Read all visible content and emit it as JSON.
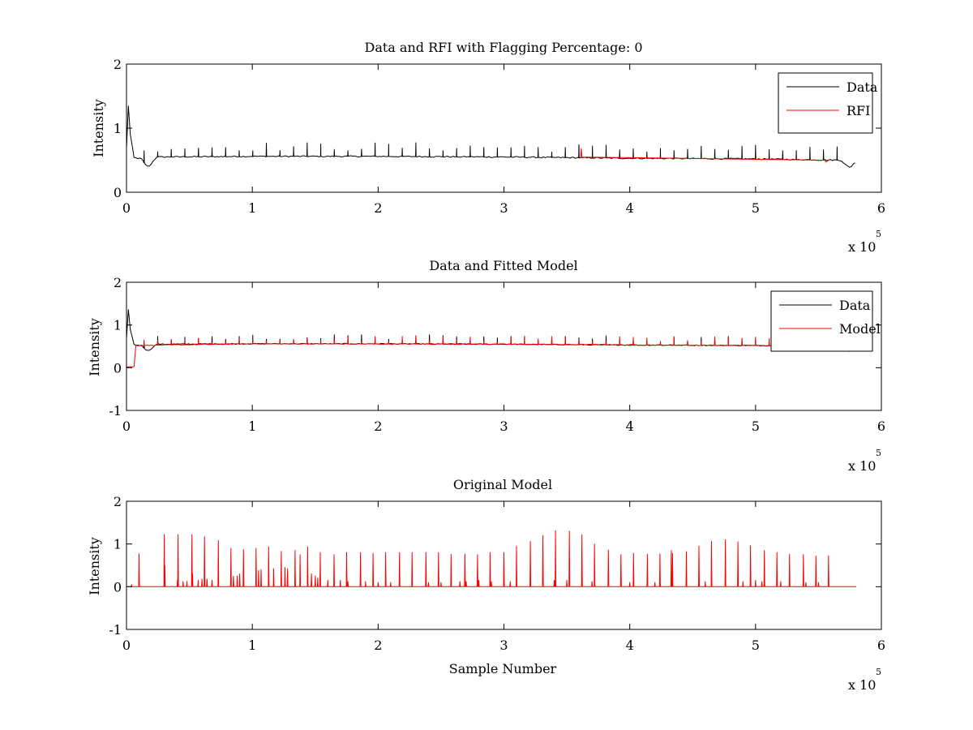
{
  "chart_data": [
    {
      "type": "line",
      "title": "Data and RFI with Flagging Percentage: 0",
      "xlabel": "",
      "ylabel": "Intensity",
      "xlim": [
        0,
        600000
      ],
      "ylim": [
        0,
        2
      ],
      "xticks": [
        "0",
        "1",
        "2",
        "3",
        "4",
        "5",
        "6"
      ],
      "yticks": [
        "0",
        "1",
        "2"
      ],
      "x_multiplier": {
        "base": "x 10",
        "exponent": "5"
      },
      "grid": false,
      "legend": {
        "placement": "top-right",
        "entries": [
          {
            "name": "Data",
            "color": "#000000"
          },
          {
            "name": "RFI",
            "color": "#ff0000"
          }
        ]
      },
      "series": [
        {
          "name": "Data",
          "color": "#000000",
          "baseline": [
            [
              0,
              0.68
            ],
            [
              1000,
              1.5
            ],
            [
              3000,
              0.9
            ],
            [
              6000,
              0.54
            ],
            [
              12000,
              0.52
            ],
            [
              15000,
              0.43
            ],
            [
              18000,
              0.4
            ],
            [
              21000,
              0.48
            ],
            [
              24000,
              0.55
            ],
            [
              100000,
              0.56
            ],
            [
              200000,
              0.56
            ],
            [
              300000,
              0.55
            ],
            [
              400000,
              0.53
            ],
            [
              500000,
              0.52
            ],
            [
              568000,
              0.5
            ],
            [
              572000,
              0.42
            ],
            [
              575000,
              0.38
            ],
            [
              578000,
              0.45
            ],
            [
              580000,
              0.48
            ]
          ],
          "spike_spacing": 10800,
          "spike_start": 14000,
          "spike_end": 568000,
          "spike_height": [
            0.08,
            0.22
          ]
        },
        {
          "name": "RFI",
          "color": "#ff0000",
          "points": [
            [
              361000,
              0.55
            ],
            [
              361500,
              0.68
            ],
            [
              362000,
              0.55
            ],
            [
              555000,
              0.5
            ],
            [
              556000,
              0.47
            ],
            [
              558000,
              0.5
            ]
          ]
        }
      ]
    },
    {
      "type": "line",
      "title": "Data and Fitted Model",
      "xlabel": "",
      "ylabel": "Intensity",
      "xlim": [
        0,
        600000
      ],
      "ylim": [
        -1,
        2
      ],
      "xticks": [
        "0",
        "1",
        "2",
        "3",
        "4",
        "5",
        "6"
      ],
      "yticks": [
        "-1",
        "0",
        "1",
        "2"
      ],
      "x_multiplier": {
        "base": "x 10",
        "exponent": "5"
      },
      "grid": false,
      "legend": {
        "placement": "top-right",
        "entries": [
          {
            "name": "Data",
            "color": "#000000"
          },
          {
            "name": "Model",
            "color": "#ff0000"
          }
        ]
      },
      "series": [
        {
          "name": "Data",
          "color": "#000000",
          "baseline": [
            [
              0,
              0.68
            ],
            [
              1000,
              1.5
            ],
            [
              3000,
              0.9
            ],
            [
              6000,
              0.54
            ],
            [
              12000,
              0.52
            ],
            [
              15000,
              0.43
            ],
            [
              18000,
              0.4
            ],
            [
              21000,
              0.48
            ],
            [
              24000,
              0.55
            ],
            [
              100000,
              0.56
            ],
            [
              200000,
              0.56
            ],
            [
              300000,
              0.55
            ],
            [
              400000,
              0.53
            ],
            [
              500000,
              0.52
            ],
            [
              568000,
              0.5
            ],
            [
              572000,
              0.42
            ],
            [
              575000,
              0.38
            ],
            [
              578000,
              0.45
            ],
            [
              580000,
              0.48
            ]
          ],
          "spike_spacing": 10800,
          "spike_start": 14000,
          "spike_end": 568000,
          "spike_height": [
            0.08,
            0.22
          ]
        },
        {
          "name": "Model",
          "color": "#ff0000",
          "baseline": [
            [
              0,
              0.02
            ],
            [
              6000,
              0.02
            ],
            [
              6500,
              0.52
            ],
            [
              100000,
              0.56
            ],
            [
              300000,
              0.55
            ],
            [
              500000,
              0.52
            ],
            [
              580000,
              0.5
            ]
          ],
          "spike_spacing": 10800,
          "spike_start": 14000,
          "spike_end": 568000,
          "spike_height": [
            0.05,
            0.2
          ]
        }
      ]
    },
    {
      "type": "line",
      "title": "Original Model",
      "xlabel": "Sample Number",
      "ylabel": "Intensity",
      "xlim": [
        0,
        600000
      ],
      "ylim": [
        -1,
        2
      ],
      "xticks": [
        "0",
        "1",
        "2",
        "3",
        "4",
        "5",
        "6"
      ],
      "yticks": [
        "-1",
        "0",
        "1",
        "2"
      ],
      "x_multiplier": {
        "base": "x 10",
        "exponent": "5"
      },
      "grid": false,
      "series": [
        {
          "name": "Model",
          "color": "#ff0000",
          "baseline_value": 0.0,
          "x_extent": [
            0,
            580000
          ],
          "peaks": [
            [
              10000,
              0.77
            ],
            [
              30000,
              1.22
            ],
            [
              41000,
              1.22
            ],
            [
              52000,
              1.22
            ],
            [
              62000,
              1.17
            ],
            [
              73000,
              1.08
            ],
            [
              83000,
              0.9
            ],
            [
              93000,
              0.87
            ],
            [
              103000,
              0.9
            ],
            [
              113000,
              0.93
            ],
            [
              123000,
              0.83
            ],
            [
              134000,
              0.85
            ],
            [
              144000,
              0.93
            ],
            [
              154000,
              0.8
            ],
            [
              165000,
              0.75
            ],
            [
              175000,
              0.8
            ],
            [
              186000,
              0.8
            ],
            [
              196000,
              0.78
            ],
            [
              206000,
              0.8
            ],
            [
              217000,
              0.8
            ],
            [
              227000,
              0.8
            ],
            [
              238000,
              0.8
            ],
            [
              248000,
              0.8
            ],
            [
              258000,
              0.76
            ],
            [
              269000,
              0.76
            ],
            [
              279000,
              0.75
            ],
            [
              289000,
              0.8
            ],
            [
              300000,
              0.8
            ],
            [
              310000,
              0.95
            ],
            [
              321000,
              1.06
            ],
            [
              331000,
              1.2
            ],
            [
              341000,
              1.31
            ],
            [
              352000,
              1.3
            ],
            [
              362000,
              1.22
            ],
            [
              372000,
              1.0
            ],
            [
              383000,
              0.86
            ],
            [
              393000,
              0.75
            ],
            [
              403000,
              0.78
            ],
            [
              414000,
              0.76
            ],
            [
              424000,
              0.77
            ],
            [
              434000,
              0.78
            ],
            [
              445000,
              0.82
            ],
            [
              455000,
              0.95
            ],
            [
              465000,
              1.06
            ],
            [
              476000,
              1.1
            ],
            [
              486000,
              1.05
            ],
            [
              496000,
              0.96
            ],
            [
              507000,
              0.85
            ],
            [
              517000,
              0.8
            ],
            [
              527000,
              0.76
            ],
            [
              538000,
              0.75
            ],
            [
              548000,
              0.72
            ],
            [
              558000,
              0.72
            ]
          ],
          "minor_peaks": [
            [
              4000,
              0.05
            ],
            [
              30500,
              0.5
            ],
            [
              40500,
              0.15
            ],
            [
              45000,
              0.12
            ],
            [
              48000,
              0.12
            ],
            [
              52500,
              0.3
            ],
            [
              57000,
              0.15
            ],
            [
              60000,
              0.18
            ],
            [
              64000,
              0.18
            ],
            [
              68000,
              0.15
            ],
            [
              85000,
              0.25
            ],
            [
              88000,
              0.25
            ],
            [
              90000,
              0.3
            ],
            [
              105000,
              0.38
            ],
            [
              107000,
              0.4
            ],
            [
              117000,
              0.42
            ],
            [
              126000,
              0.45
            ],
            [
              128000,
              0.42
            ],
            [
              138000,
              0.75
            ],
            [
              147000,
              0.3
            ],
            [
              150000,
              0.25
            ],
            [
              152000,
              0.2
            ],
            [
              160000,
              0.15
            ],
            [
              170000,
              0.15
            ],
            [
              176000,
              0.12
            ],
            [
              190000,
              0.12
            ],
            [
              200000,
              0.1
            ],
            [
              210000,
              0.1
            ],
            [
              240000,
              0.1
            ],
            [
              250000,
              0.1
            ],
            [
              265000,
              0.12
            ],
            [
              270000,
              0.12
            ],
            [
              280000,
              0.15
            ],
            [
              290000,
              0.12
            ],
            [
              305000,
              0.12
            ],
            [
              340000,
              0.15
            ],
            [
              350000,
              0.15
            ],
            [
              370000,
              0.12
            ],
            [
              400000,
              0.1
            ],
            [
              420000,
              0.1
            ],
            [
              433000,
              0.85
            ],
            [
              460000,
              0.12
            ],
            [
              490000,
              0.12
            ],
            [
              500000,
              0.15
            ],
            [
              505000,
              0.12
            ],
            [
              520000,
              0.12
            ],
            [
              540000,
              0.1
            ],
            [
              550000,
              0.1
            ]
          ]
        }
      ]
    }
  ]
}
